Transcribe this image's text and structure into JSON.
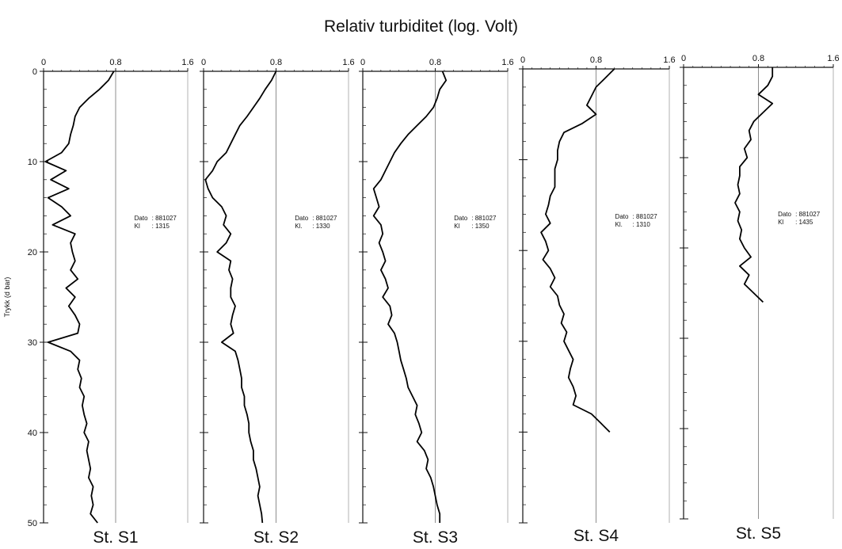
{
  "title": "Relativ turbiditet (log. Volt)",
  "ylabel": "Trykk (d bar)",
  "chart_data": {
    "type": "line",
    "title": "Relativ turbiditet (log. Volt)",
    "ylabel": "Trykk (d bar)",
    "xlim": [
      0,
      1.6
    ],
    "ylim": [
      0,
      50
    ],
    "y_inverted": true,
    "x_ticks": [
      "0",
      "0.8",
      "1.6"
    ],
    "y_ticks": [
      "0",
      "10",
      "20",
      "30",
      "40",
      "50"
    ],
    "grid": false,
    "panels": [
      {
        "name": "St. S1",
        "dato_label": "Dato",
        "dato": ": 881027",
        "kl_label": "Kl",
        "kl": ": 1315",
        "depth": [
          0,
          1,
          2,
          3,
          4,
          5,
          6,
          7,
          8,
          9,
          10,
          11,
          12,
          13,
          14,
          15,
          16,
          17,
          18,
          19,
          20,
          21,
          22,
          23,
          24,
          25,
          26,
          27,
          28,
          29,
          30,
          31,
          32,
          33,
          34,
          35,
          36,
          37,
          38,
          39,
          40,
          41,
          42,
          43,
          44,
          45,
          46,
          47,
          48,
          49,
          50
        ],
        "turbidity": [
          0.78,
          0.72,
          0.62,
          0.5,
          0.4,
          0.35,
          0.33,
          0.3,
          0.28,
          0.2,
          0.02,
          0.25,
          0.08,
          0.28,
          0.05,
          0.2,
          0.3,
          0.1,
          0.35,
          0.3,
          0.32,
          0.35,
          0.3,
          0.38,
          0.25,
          0.35,
          0.28,
          0.35,
          0.4,
          0.38,
          0.05,
          0.3,
          0.4,
          0.38,
          0.42,
          0.4,
          0.45,
          0.43,
          0.45,
          0.48,
          0.45,
          0.5,
          0.48,
          0.5,
          0.52,
          0.5,
          0.55,
          0.53,
          0.55,
          0.52,
          0.6
        ]
      },
      {
        "name": "St. S2",
        "dato_label": "Dato",
        "dato": ": 881027",
        "kl_label": "Kl.",
        "kl": ": 1330",
        "depth": [
          0,
          1,
          2,
          3,
          4,
          5,
          6,
          7,
          8,
          9,
          10,
          11,
          12,
          13,
          14,
          15,
          16,
          17,
          18,
          19,
          20,
          21,
          22,
          23,
          24,
          25,
          26,
          27,
          28,
          29,
          30,
          31,
          32,
          33,
          34,
          35,
          36,
          37,
          38,
          39,
          40,
          41,
          42,
          43,
          44,
          45,
          46,
          47,
          48,
          49,
          50
        ],
        "turbidity": [
          0.8,
          0.75,
          0.68,
          0.62,
          0.55,
          0.48,
          0.4,
          0.35,
          0.3,
          0.25,
          0.15,
          0.1,
          0.02,
          0.05,
          0.1,
          0.2,
          0.25,
          0.22,
          0.3,
          0.25,
          0.15,
          0.3,
          0.28,
          0.32,
          0.3,
          0.3,
          0.35,
          0.32,
          0.3,
          0.33,
          0.2,
          0.35,
          0.38,
          0.4,
          0.42,
          0.42,
          0.45,
          0.45,
          0.48,
          0.5,
          0.5,
          0.52,
          0.55,
          0.55,
          0.58,
          0.6,
          0.62,
          0.6,
          0.62,
          0.64,
          0.65
        ]
      },
      {
        "name": "St. S3",
        "dato_label": "Dato",
        "dato": ": 881027",
        "kl_label": "Kl",
        "kl": ": 1350",
        "depth": [
          0,
          1,
          2,
          3,
          4,
          5,
          6,
          7,
          8,
          9,
          10,
          11,
          12,
          13,
          14,
          15,
          16,
          17,
          18,
          19,
          20,
          21,
          22,
          23,
          24,
          25,
          26,
          27,
          28,
          29,
          30,
          31,
          32,
          33,
          34,
          35,
          36,
          37,
          38,
          39,
          40,
          41,
          42,
          43,
          44,
          45,
          46,
          47,
          48,
          49,
          50
        ],
        "turbidity": [
          0.88,
          0.92,
          0.85,
          0.82,
          0.78,
          0.7,
          0.6,
          0.5,
          0.42,
          0.35,
          0.3,
          0.25,
          0.2,
          0.12,
          0.15,
          0.18,
          0.12,
          0.2,
          0.22,
          0.18,
          0.22,
          0.25,
          0.2,
          0.25,
          0.28,
          0.22,
          0.3,
          0.32,
          0.28,
          0.35,
          0.38,
          0.4,
          0.42,
          0.45,
          0.48,
          0.5,
          0.55,
          0.6,
          0.58,
          0.62,
          0.65,
          0.6,
          0.68,
          0.72,
          0.7,
          0.75,
          0.78,
          0.8,
          0.82,
          0.85,
          0.85
        ]
      },
      {
        "name": "St. S4",
        "dato_label": "Dato",
        "dato": ": 881027",
        "kl_label": "Kl.",
        "kl": ": 1310",
        "depth": [
          0,
          1,
          2,
          3,
          4,
          5,
          6,
          7,
          8,
          9,
          10,
          11,
          12,
          13,
          14,
          15,
          16,
          17,
          18,
          19,
          20,
          21,
          22,
          23,
          24,
          25,
          26,
          27,
          28,
          29,
          30,
          31,
          32,
          33,
          34,
          35,
          36,
          37,
          38,
          39,
          40
        ],
        "turbidity": [
          1.0,
          0.9,
          0.8,
          0.75,
          0.7,
          0.8,
          0.65,
          0.45,
          0.4,
          0.38,
          0.38,
          0.35,
          0.35,
          0.35,
          0.3,
          0.28,
          0.25,
          0.3,
          0.2,
          0.25,
          0.28,
          0.22,
          0.3,
          0.35,
          0.3,
          0.38,
          0.4,
          0.45,
          0.42,
          0.48,
          0.45,
          0.5,
          0.55,
          0.52,
          0.5,
          0.55,
          0.58,
          0.55,
          0.75,
          0.85,
          0.95
        ]
      },
      {
        "name": "St. S5",
        "dato_label": "Dato",
        "dato": ": 881027",
        "kl_label": "Kl",
        "kl": ": 1435",
        "depth": [
          0,
          1,
          2,
          3,
          4,
          5,
          6,
          7,
          8,
          9,
          10,
          11,
          12,
          13,
          14,
          15,
          16,
          17,
          18,
          19,
          20,
          21,
          22,
          23,
          24,
          25,
          26
        ],
        "turbidity": [
          0.95,
          0.95,
          0.9,
          0.8,
          0.95,
          0.85,
          0.75,
          0.7,
          0.72,
          0.65,
          0.68,
          0.6,
          0.6,
          0.58,
          0.6,
          0.55,
          0.6,
          0.58,
          0.62,
          0.6,
          0.65,
          0.72,
          0.6,
          0.7,
          0.65,
          0.75,
          0.85
        ]
      }
    ]
  }
}
